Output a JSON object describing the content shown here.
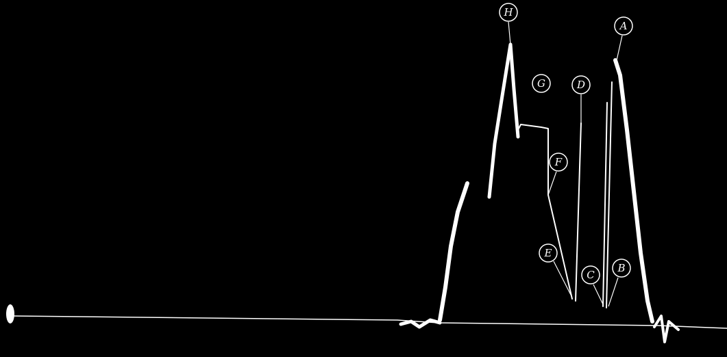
{
  "labels": [
    "H",
    "A",
    "G",
    "D",
    "F",
    "E",
    "C",
    "B"
  ]
}
